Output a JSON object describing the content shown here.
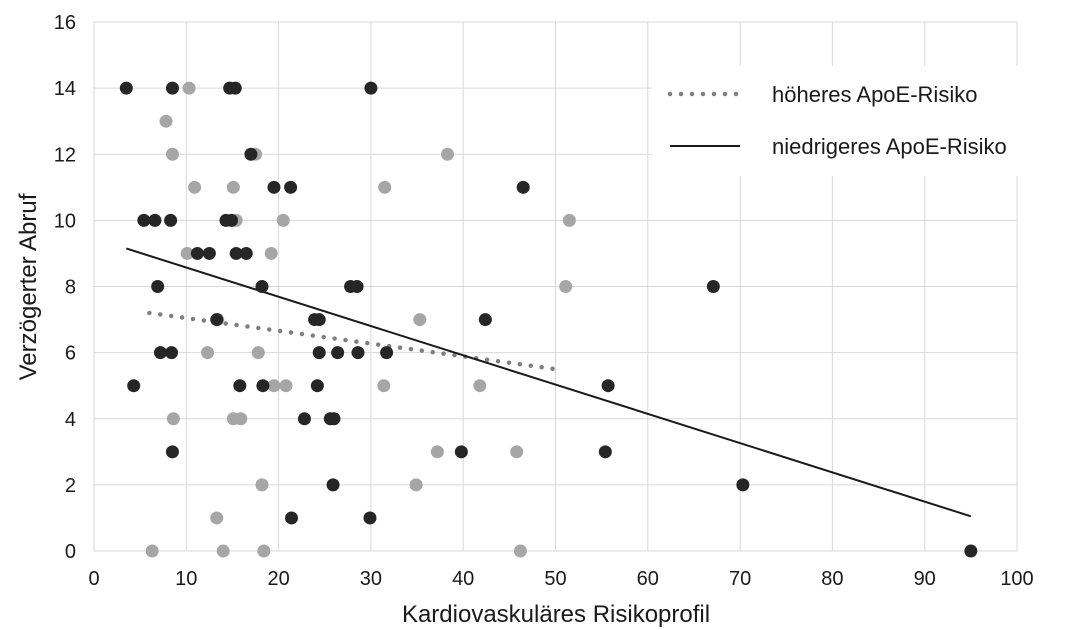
{
  "chart_data": {
    "type": "scatter",
    "xlabel": "Kardiovaskuläres Risikoprofil",
    "ylabel": "Verzögerter Abruf",
    "xlim": [
      0,
      100
    ],
    "ylim": [
      0,
      16
    ],
    "xticks": [
      0,
      10,
      20,
      30,
      40,
      50,
      60,
      70,
      80,
      90,
      100
    ],
    "yticks": [
      0,
      2,
      4,
      6,
      8,
      10,
      12,
      14,
      16
    ],
    "grid": "vertical and horizontal",
    "legend_position": "top-right",
    "series": [
      {
        "name": "höheres ApoE-Risiko",
        "color": "#a6a6a6",
        "trendline": {
          "style": "dotted",
          "color": "#7f7f7f",
          "x": [
            6,
            50
          ],
          "y": [
            7.2,
            5.5
          ]
        },
        "points": [
          [
            10.3,
            14
          ],
          [
            7.8,
            13
          ],
          [
            8.5,
            12
          ],
          [
            17.5,
            12
          ],
          [
            38.3,
            12
          ],
          [
            10.9,
            11
          ],
          [
            15.1,
            11
          ],
          [
            31.5,
            11
          ],
          [
            15.4,
            10
          ],
          [
            20.5,
            10
          ],
          [
            51.5,
            10
          ],
          [
            10.1,
            9
          ],
          [
            19.2,
            9
          ],
          [
            51.1,
            8
          ],
          [
            13.4,
            7
          ],
          [
            35.3,
            7
          ],
          [
            12.3,
            6
          ],
          [
            17.8,
            6
          ],
          [
            19.5,
            5
          ],
          [
            20.8,
            5
          ],
          [
            31.4,
            5
          ],
          [
            41.8,
            5
          ],
          [
            8.6,
            4
          ],
          [
            15.1,
            4
          ],
          [
            15.9,
            4
          ],
          [
            37.2,
            3
          ],
          [
            45.8,
            3
          ],
          [
            18.2,
            2
          ],
          [
            34.9,
            2
          ],
          [
            13.3,
            1
          ],
          [
            6.3,
            0
          ],
          [
            14.0,
            0
          ],
          [
            18.4,
            0
          ],
          [
            46.2,
            0
          ]
        ]
      },
      {
        "name": "niedrigeres ApoE-Risiko",
        "color": "#262626",
        "trendline": {
          "style": "solid",
          "color": "#1a1a1a",
          "x": [
            3.5,
            95
          ],
          "y": [
            9.15,
            1.05
          ]
        },
        "points": [
          [
            3.5,
            14
          ],
          [
            8.5,
            14
          ],
          [
            14.7,
            14
          ],
          [
            15.3,
            14
          ],
          [
            30.0,
            14
          ],
          [
            17.0,
            12
          ],
          [
            19.5,
            11
          ],
          [
            21.3,
            11
          ],
          [
            46.5,
            11
          ],
          [
            5.4,
            10
          ],
          [
            6.6,
            10
          ],
          [
            8.3,
            10
          ],
          [
            14.3,
            10
          ],
          [
            14.9,
            10
          ],
          [
            11.2,
            9
          ],
          [
            12.5,
            9
          ],
          [
            15.4,
            9
          ],
          [
            16.5,
            9
          ],
          [
            6.9,
            8
          ],
          [
            18.2,
            8
          ],
          [
            27.8,
            8
          ],
          [
            28.5,
            8
          ],
          [
            67.1,
            8
          ],
          [
            13.3,
            7
          ],
          [
            23.9,
            7
          ],
          [
            24.4,
            7
          ],
          [
            42.4,
            7
          ],
          [
            7.2,
            6
          ],
          [
            8.4,
            6
          ],
          [
            24.4,
            6
          ],
          [
            26.4,
            6
          ],
          [
            28.6,
            6
          ],
          [
            31.7,
            6
          ],
          [
            4.3,
            5
          ],
          [
            15.8,
            5
          ],
          [
            18.3,
            5
          ],
          [
            24.2,
            5
          ],
          [
            55.7,
            5
          ],
          [
            22.8,
            4
          ],
          [
            25.6,
            4
          ],
          [
            26.0,
            4
          ],
          [
            8.5,
            3
          ],
          [
            39.8,
            3
          ],
          [
            55.4,
            3
          ],
          [
            25.9,
            2
          ],
          [
            70.3,
            2
          ],
          [
            21.4,
            1
          ],
          [
            29.9,
            1
          ],
          [
            95.0,
            0
          ]
        ]
      }
    ]
  }
}
